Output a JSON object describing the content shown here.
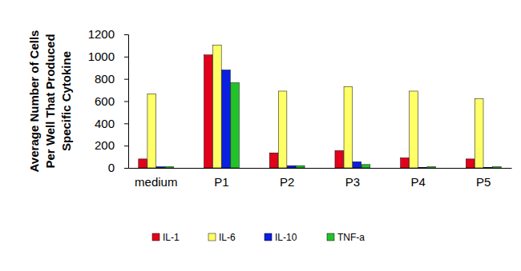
{
  "chart_data": {
    "type": "bar",
    "ylabel": [
      "Average Number of Cells",
      "Per Well That Produced",
      "Specific Cytokine"
    ],
    "categories": [
      "medium",
      "P1",
      "P2",
      "P3",
      "P4",
      "P5"
    ],
    "series": [
      {
        "name": "IL-1",
        "color": "#e3001b",
        "values": [
          80,
          1015,
          135,
          155,
          90,
          80
        ]
      },
      {
        "name": "IL-6",
        "color": "#ffff66",
        "values": [
          665,
          1105,
          690,
          730,
          690,
          620
        ]
      },
      {
        "name": "IL-10",
        "color": "#0a1fe0",
        "values": [
          10,
          880,
          20,
          55,
          5,
          5
        ]
      },
      {
        "name": "TNF-a",
        "color": "#22c32a",
        "values": [
          10,
          765,
          20,
          30,
          10,
          10
        ]
      }
    ],
    "ylim": [
      0,
      1200
    ],
    "yticks": [
      0,
      200,
      400,
      600,
      800,
      1000,
      1200
    ],
    "grid": false,
    "legend": "bottom"
  }
}
